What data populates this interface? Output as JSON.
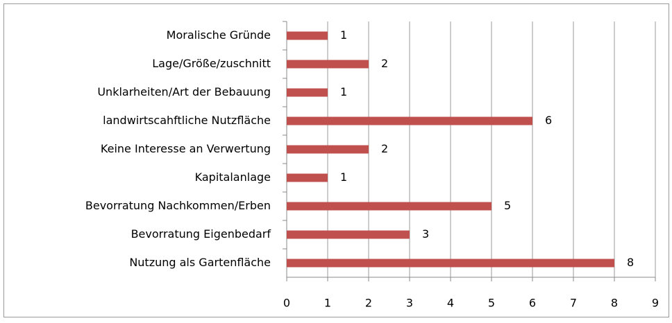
{
  "chart_data": {
    "type": "bar",
    "orientation": "horizontal",
    "categories": [
      "Moralische Gründe",
      "Lage/Größe/zuschnitt",
      "Unklarheiten/Art der Bebauung",
      "landwirtscahftliche Nutzfläche",
      "Keine Interesse an Verwertung",
      "Kapitalanlage",
      "Bevorratung Nachkommen/Erben",
      "Bevorratung Eigenbedarf",
      "Nutzung als Gartenfläche"
    ],
    "values": [
      1,
      2,
      1,
      6,
      2,
      1,
      5,
      3,
      8
    ],
    "color": "#c0504d",
    "xlim": [
      0,
      9
    ],
    "xticks": [
      0,
      1,
      2,
      3,
      4,
      5,
      6,
      7,
      8,
      9
    ],
    "grid": true
  }
}
